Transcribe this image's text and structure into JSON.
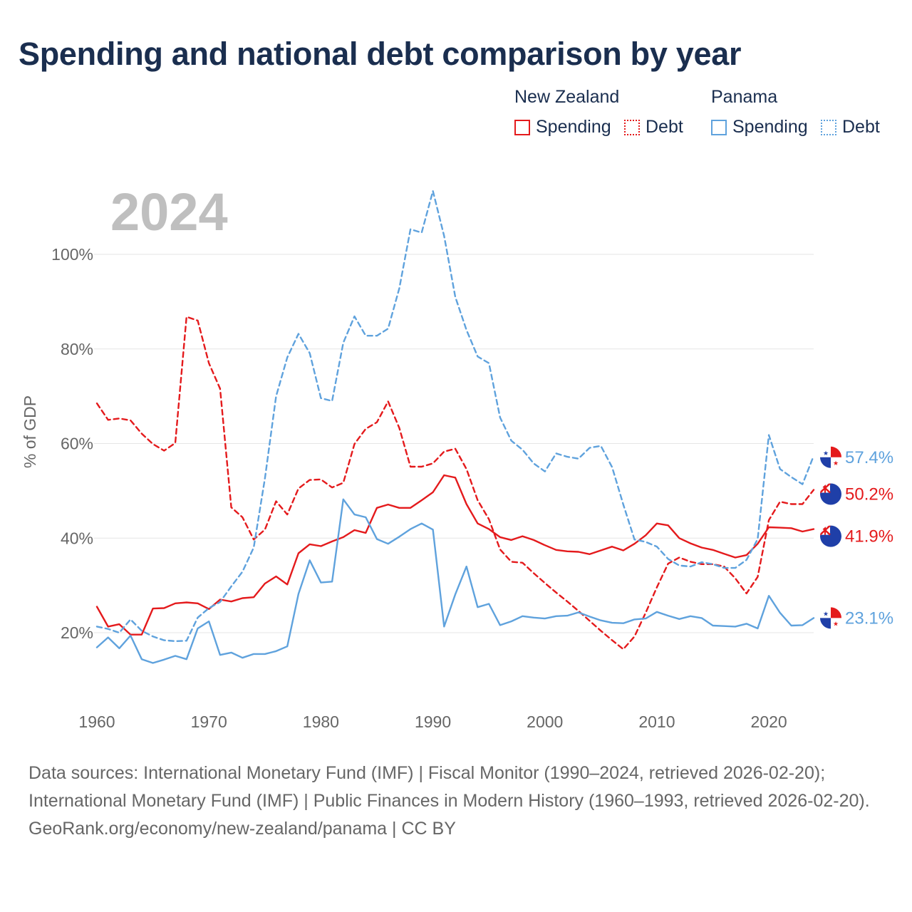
{
  "title": "Spending and national debt comparison by year",
  "legend": {
    "groups": [
      {
        "name": "New Zealand",
        "entries": [
          {
            "label": "Spending",
            "style": "solid",
            "color": "#e41a1c"
          },
          {
            "label": "Debt",
            "style": "dotted",
            "color": "#e41a1c"
          }
        ]
      },
      {
        "name": "Panama",
        "entries": [
          {
            "label": "Spending",
            "style": "solid",
            "color": "#5fa2dd"
          },
          {
            "label": "Debt",
            "style": "dotted",
            "color": "#5fa2dd"
          }
        ]
      }
    ]
  },
  "colors": {
    "new_zealand": "#e41a1c",
    "panama": "#5fa2dd",
    "year_overlay": "#bfbfbf",
    "title": "#1a2e4f"
  },
  "chart_data": {
    "type": "line",
    "title": "Spending and national debt comparison by year",
    "year_overlay": "2024",
    "xlabel": "",
    "ylabel": "% of GDP",
    "xlim": [
      1960,
      2024
    ],
    "ylim": [
      8,
      115
    ],
    "x_ticks": [
      1960,
      1970,
      1980,
      1990,
      2000,
      2010,
      2020
    ],
    "y_ticks": [
      20,
      40,
      60,
      80,
      100
    ],
    "y_tick_labels": [
      "20%",
      "40%",
      "60%",
      "80%",
      "100%"
    ],
    "grid": true,
    "years": [
      1960,
      1961,
      1962,
      1963,
      1964,
      1965,
      1966,
      1967,
      1968,
      1969,
      1970,
      1971,
      1972,
      1973,
      1974,
      1975,
      1976,
      1977,
      1978,
      1979,
      1980,
      1981,
      1982,
      1983,
      1984,
      1985,
      1986,
      1987,
      1988,
      1989,
      1990,
      1991,
      1992,
      1993,
      1994,
      1995,
      1996,
      1997,
      1998,
      1999,
      2000,
      2001,
      2002,
      2003,
      2004,
      2005,
      2006,
      2007,
      2008,
      2009,
      2010,
      2011,
      2012,
      2013,
      2014,
      2015,
      2016,
      2017,
      2018,
      2019,
      2020,
      2021,
      2022,
      2023,
      2024
    ],
    "series": [
      {
        "name": "New Zealand Spending",
        "country": "New Zealand",
        "measure": "Spending",
        "style": "solid",
        "color": "#e41a1c",
        "values": [
          25.5,
          21.3,
          21.8,
          19.6,
          19.6,
          25.1,
          25.2,
          26.2,
          26.4,
          26.2,
          25.0,
          27.0,
          26.6,
          27.3,
          27.5,
          30.4,
          31.9,
          30.2,
          36.8,
          38.7,
          38.3,
          39.3,
          40.2,
          41.7,
          41.1,
          46.4,
          47.1,
          46.4,
          46.4,
          48.0,
          49.7,
          53.3,
          52.8,
          47.2,
          43.1,
          41.9,
          40.2,
          39.6,
          40.4,
          39.6,
          38.5,
          37.5,
          37.2,
          37.1,
          36.6,
          37.4,
          38.2,
          37.4,
          38.8,
          40.6,
          43.1,
          42.7,
          40.0,
          38.9,
          38.0,
          37.5,
          36.7,
          35.9,
          36.4,
          38.8,
          42.3,
          42.2,
          42.1,
          41.4,
          41.9
        ]
      },
      {
        "name": "New Zealand Debt",
        "country": "New Zealand",
        "measure": "Debt",
        "style": "dashed",
        "color": "#e41a1c",
        "values": [
          68.5,
          65.0,
          65.3,
          64.9,
          62.1,
          59.9,
          58.5,
          60.1,
          86.8,
          86.0,
          77.0,
          71.6,
          46.5,
          44.4,
          39.7,
          41.8,
          47.8,
          45.0,
          50.5,
          52.3,
          52.4,
          50.7,
          51.7,
          59.9,
          63.1,
          64.5,
          68.9,
          63.3,
          55.1,
          55.1,
          55.8,
          58.3,
          58.9,
          54.6,
          48.0,
          44.0,
          37.6,
          35.0,
          34.8,
          32.6,
          30.5,
          28.5,
          26.6,
          24.6,
          22.5,
          20.4,
          18.4,
          16.5,
          19.2,
          24.2,
          29.6,
          34.6,
          35.9,
          35.0,
          34.5,
          34.5,
          34.0,
          31.5,
          28.3,
          31.8,
          43.8,
          47.7,
          47.2,
          47.2,
          50.2
        ]
      },
      {
        "name": "Panama Spending",
        "country": "Panama",
        "measure": "Spending",
        "style": "solid",
        "color": "#5fa2dd",
        "values": [
          16.9,
          19.0,
          16.7,
          19.4,
          14.4,
          13.6,
          14.3,
          15.1,
          14.4,
          20.9,
          22.4,
          15.3,
          15.8,
          14.7,
          15.5,
          15.5,
          16.1,
          17.1,
          28.2,
          35.3,
          30.6,
          30.8,
          48.2,
          45.0,
          44.4,
          39.8,
          38.8,
          40.3,
          41.9,
          43.1,
          41.8,
          21.3,
          28.1,
          34.0,
          25.4,
          26.1,
          21.6,
          22.4,
          23.5,
          23.2,
          23.0,
          23.5,
          23.6,
          24.3,
          23.4,
          22.6,
          22.1,
          22.0,
          22.8,
          23.0,
          24.4,
          23.6,
          22.9,
          23.5,
          23.1,
          21.5,
          21.4,
          21.3,
          21.9,
          20.9,
          27.8,
          24.2,
          21.5,
          21.6,
          23.1
        ]
      },
      {
        "name": "Panama Debt",
        "country": "Panama",
        "measure": "Debt",
        "style": "dashed",
        "color": "#5fa2dd",
        "values": [
          21.3,
          20.8,
          20.0,
          22.8,
          20.4,
          19.2,
          18.4,
          18.2,
          18.3,
          23.2,
          25.2,
          26.5,
          29.8,
          32.9,
          38.0,
          52.6,
          70.0,
          78.2,
          83.2,
          79.1,
          69.6,
          69.0,
          81.3,
          86.9,
          82.8,
          82.8,
          84.3,
          92.8,
          105.3,
          104.6,
          113.4,
          103.9,
          91.0,
          84.0,
          78.4,
          77.0,
          65.5,
          60.6,
          58.7,
          55.8,
          54.1,
          57.9,
          57.2,
          56.8,
          59.1,
          59.5,
          55.0,
          47.1,
          39.7,
          39.2,
          38.2,
          35.6,
          34.2,
          34.0,
          34.9,
          34.5,
          33.7,
          33.7,
          35.4,
          39.8,
          61.8,
          54.6,
          52.9,
          51.4,
          57.4
        ]
      }
    ],
    "end_labels": [
      {
        "series": "Panama Debt",
        "text": "57.4%"
      },
      {
        "series": "New Zealand Debt",
        "text": "50.2%"
      },
      {
        "series": "New Zealand Spending",
        "text": "41.9%"
      },
      {
        "series": "Panama Spending",
        "text": "23.1%"
      }
    ]
  },
  "sources": {
    "line1": "Data sources: International Monetary Fund (IMF) | Fiscal Monitor (1990–2024, retrieved 2026-02-20); International Monetary Fund (IMF) | Public Finances in Modern History (1960–1993, retrieved 2026-02-20).",
    "line2": "GeoRank.org/economy/new-zealand/panama | CC BY"
  }
}
